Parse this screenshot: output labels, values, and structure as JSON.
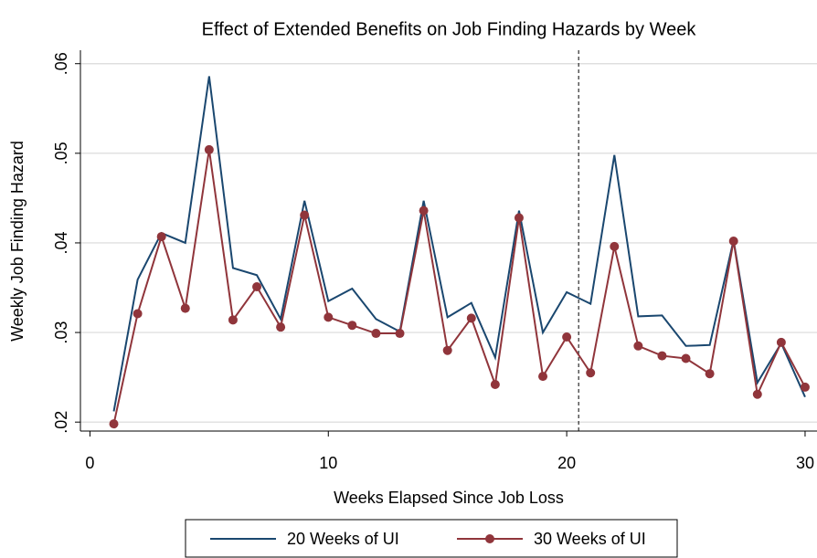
{
  "chart_data": {
    "type": "line",
    "title": "Effect of Extended Benefits on Job Finding Hazards by Week",
    "x_label": "Weeks Elapsed Since Job Loss",
    "y_label": "Weekly Job Finding Hazard",
    "x": [
      1,
      2,
      3,
      4,
      5,
      6,
      7,
      8,
      9,
      10,
      11,
      12,
      13,
      14,
      15,
      16,
      17,
      18,
      19,
      20,
      21,
      22,
      23,
      24,
      25,
      26,
      27,
      28,
      29,
      30
    ],
    "series": [
      {
        "name": "20 Weeks of UI",
        "color": "#1a476f",
        "markers": false,
        "values": [
          0.0212,
          0.0359,
          0.0411,
          0.04,
          0.0586,
          0.0372,
          0.0364,
          0.0315,
          0.0447,
          0.0335,
          0.0349,
          0.0315,
          0.0301,
          0.0447,
          0.0317,
          0.0333,
          0.0272,
          0.0436,
          0.03,
          0.0345,
          0.0332,
          0.0498,
          0.0318,
          0.0319,
          0.0285,
          0.0286,
          0.0403,
          0.0244,
          0.0288,
          0.0228
        ]
      },
      {
        "name": "30 Weeks of UI",
        "color": "#90353b",
        "markers": true,
        "values": [
          0.0198,
          0.0321,
          0.0407,
          0.0327,
          0.0504,
          0.0314,
          0.0351,
          0.0306,
          0.0431,
          0.0317,
          0.0308,
          0.0299,
          0.0299,
          0.0436,
          0.028,
          0.0316,
          0.0242,
          0.0428,
          0.0251,
          0.0295,
          0.0255,
          0.0396,
          0.0285,
          0.0274,
          0.0271,
          0.0254,
          0.0402,
          0.0231,
          0.0289,
          0.0239
        ]
      }
    ],
    "xlim": [
      -0.4,
      30.5
    ],
    "ylim": [
      0.019,
      0.0615
    ],
    "xticks": [
      0,
      10,
      20,
      30
    ],
    "yticks": [
      {
        "value": 0.02,
        "label": ".02"
      },
      {
        "value": 0.03,
        "label": ".03"
      },
      {
        "value": 0.04,
        "label": ".04"
      },
      {
        "value": 0.05,
        "label": ".05"
      },
      {
        "value": 0.06,
        "label": ".06"
      }
    ],
    "grid": true,
    "vline": 20.5,
    "legend": "bottom"
  }
}
